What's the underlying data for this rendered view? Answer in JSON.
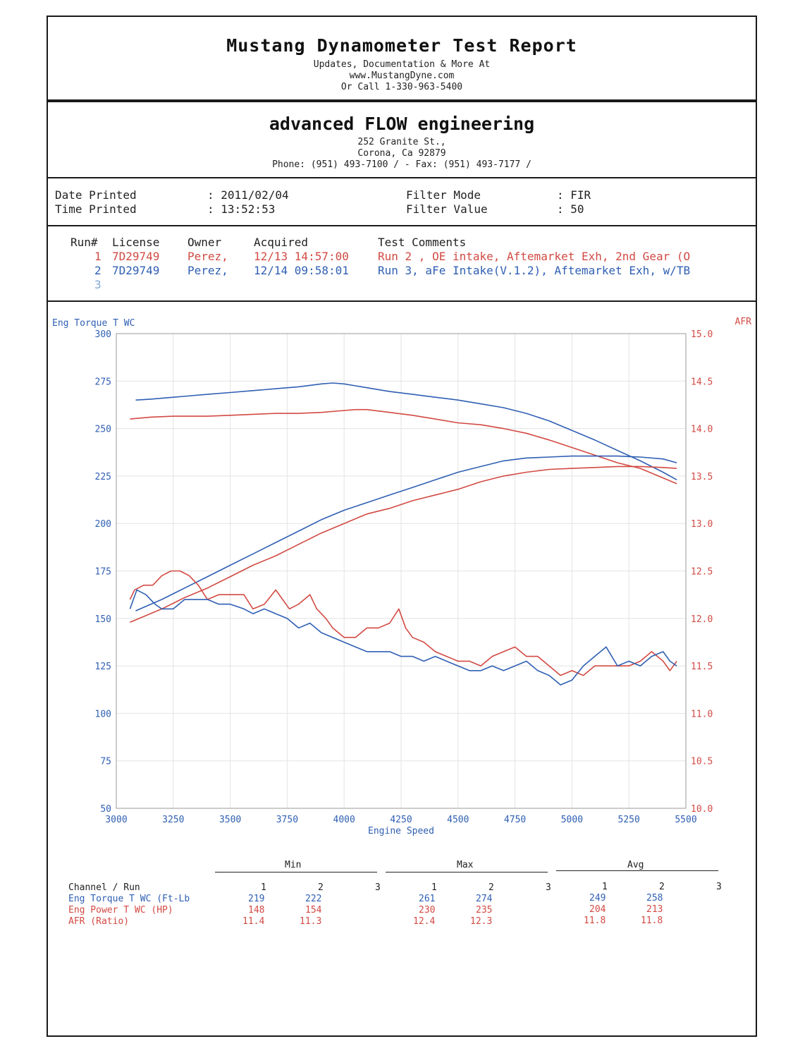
{
  "header": {
    "title": "Mustang Dynamometer Test Report",
    "line1": "Updates, Documentation & More At",
    "line2": "www.MustangDyne.com",
    "line3": "Or Call 1-330-963-5400"
  },
  "company": {
    "name": "advanced FLOW engineering",
    "street": "252 Granite St.,",
    "city": "Corona, Ca  92879",
    "phone": "Phone: (951) 493-7100 /  - Fax: (951) 493-7177 /"
  },
  "info": {
    "date_label": "Date Printed",
    "date_value": ": 2011/02/04",
    "time_label": "Time Printed",
    "time_value": ": 13:52:53",
    "filter_mode_label": "Filter Mode",
    "filter_mode_value": ": FIR",
    "filter_value_label": "Filter Value",
    "filter_value_value": ": 50"
  },
  "runs": {
    "headers": [
      "Run#",
      "License",
      "Owner",
      "Acquired",
      "Test Comments"
    ],
    "rows": [
      {
        "run": "1",
        "license": "7D29749",
        "owner": "Perez,",
        "acquired": "12/13 14:57:00",
        "comment": "Run 2 , OE intake, Aftemarket Exh, 2nd Gear (O"
      },
      {
        "run": "2",
        "license": "7D29749",
        "owner": "Perez,",
        "acquired": "12/14 09:58:01",
        "comment": "Run 3, aFe Intake(V.1.2), Aftemarket Exh, w/TB"
      },
      {
        "run": "3"
      }
    ]
  },
  "chart_data": {
    "type": "line",
    "left_axis_label": "Eng Torque T WC",
    "right_axis_label": "AFR",
    "xlabel": "Engine Speed",
    "xlim": [
      3000,
      5500
    ],
    "ylim_left": [
      50,
      300
    ],
    "ylim_right": [
      10.0,
      15.0
    ],
    "x_ticks": [
      "3000",
      "3250",
      "3500",
      "3750",
      "4000",
      "4250",
      "4500",
      "4750",
      "5000",
      "5250",
      "5500"
    ],
    "y_left_ticks": [
      "50",
      "75",
      "100",
      "125",
      "150",
      "175",
      "200",
      "225",
      "250",
      "275",
      "300"
    ],
    "y_right_ticks": [
      "10.0",
      "10.5",
      "11.0",
      "11.5",
      "12.0",
      "12.5",
      "13.0",
      "13.5",
      "14.0",
      "14.5",
      "15.0"
    ],
    "colors": {
      "run1": "#d24a43",
      "run2": "#2f5fb3"
    },
    "series": [
      {
        "name": "Run 1 Torque (Ft-Lb)",
        "run": 1,
        "axis": "left",
        "x": [
          3060,
          3150,
          3250,
          3400,
          3500,
          3600,
          3700,
          3800,
          3900,
          4000,
          4050,
          4100,
          4200,
          4300,
          4400,
          4500,
          4600,
          4700,
          4800,
          4900,
          5000,
          5100,
          5200,
          5300,
          5400,
          5460
        ],
        "y": [
          255,
          256,
          256.5,
          256.5,
          257,
          257.5,
          258,
          258,
          258.5,
          259.5,
          260,
          260,
          258.5,
          257,
          255,
          253,
          252,
          250,
          247.5,
          244,
          240,
          236,
          232,
          229,
          224,
          221
        ]
      },
      {
        "name": "Run 2 Torque (Ft-Lb)",
        "run": 2,
        "axis": "left",
        "x": [
          3085,
          3150,
          3250,
          3400,
          3500,
          3600,
          3700,
          3800,
          3900,
          3950,
          4000,
          4050,
          4100,
          4200,
          4300,
          4400,
          4500,
          4600,
          4700,
          4800,
          4900,
          5000,
          5100,
          5200,
          5300,
          5400,
          5460
        ],
        "y": [
          265,
          265.5,
          266.5,
          268,
          269,
          270,
          271,
          272,
          273.5,
          274,
          273.5,
          272.5,
          271.5,
          269.5,
          268,
          266.5,
          265,
          263,
          261,
          258,
          254,
          249,
          244,
          238.5,
          233,
          227,
          223
        ]
      },
      {
        "name": "Run 1 Power (HP)",
        "run": 1,
        "axis": "left",
        "x": [
          3060,
          3200,
          3300,
          3400,
          3500,
          3600,
          3700,
          3800,
          3900,
          4000,
          4100,
          4200,
          4300,
          4400,
          4500,
          4600,
          4700,
          4800,
          4900,
          5000,
          5100,
          5200,
          5300,
          5400,
          5460
        ],
        "y": [
          148,
          155,
          161,
          166,
          172,
          178,
          183,
          189,
          195,
          200,
          205,
          208,
          212,
          215,
          218,
          222,
          225,
          227,
          228.5,
          229,
          229.5,
          230,
          230,
          229.5,
          229
        ]
      },
      {
        "name": "Run 2 Power (HP)",
        "run": 2,
        "axis": "left",
        "x": [
          3085,
          3200,
          3300,
          3400,
          3500,
          3600,
          3700,
          3800,
          3900,
          4000,
          4100,
          4200,
          4300,
          4400,
          4500,
          4600,
          4700,
          4800,
          4900,
          5000,
          5100,
          5200,
          5300,
          5400,
          5460
        ],
        "y": [
          154,
          160,
          166,
          172,
          178,
          184,
          190,
          196,
          202,
          207,
          211,
          215,
          219,
          223,
          227,
          230,
          233,
          234.5,
          235,
          235.5,
          235.5,
          235.5,
          235,
          234,
          232
        ]
      },
      {
        "name": "Run 1 AFR (Ratio)",
        "run": 1,
        "axis": "right",
        "x": [
          3060,
          3080,
          3120,
          3160,
          3200,
          3240,
          3280,
          3320,
          3360,
          3400,
          3450,
          3500,
          3560,
          3600,
          3650,
          3700,
          3730,
          3760,
          3800,
          3850,
          3880,
          3920,
          3950,
          4000,
          4050,
          4100,
          4150,
          4200,
          4240,
          4270,
          4300,
          4350,
          4400,
          4450,
          4500,
          4550,
          4600,
          4650,
          4700,
          4750,
          4800,
          4850,
          4900,
          4950,
          5000,
          5050,
          5100,
          5150,
          5200,
          5250,
          5300,
          5350,
          5400,
          5430,
          5460
        ],
        "y": [
          12.2,
          12.3,
          12.35,
          12.35,
          12.45,
          12.5,
          12.5,
          12.45,
          12.35,
          12.2,
          12.25,
          12.25,
          12.25,
          12.1,
          12.15,
          12.3,
          12.2,
          12.1,
          12.15,
          12.25,
          12.1,
          12.0,
          11.9,
          11.8,
          11.8,
          11.9,
          11.9,
          11.95,
          12.1,
          11.9,
          11.8,
          11.75,
          11.65,
          11.6,
          11.55,
          11.55,
          11.5,
          11.6,
          11.65,
          11.7,
          11.6,
          11.6,
          11.5,
          11.4,
          11.45,
          11.4,
          11.5,
          11.5,
          11.5,
          11.5,
          11.55,
          11.65,
          11.55,
          11.45,
          11.55
        ]
      },
      {
        "name": "Run 2 AFR (Ratio)",
        "run": 2,
        "axis": "right",
        "x": [
          3060,
          3090,
          3130,
          3170,
          3200,
          3250,
          3300,
          3350,
          3400,
          3450,
          3500,
          3560,
          3600,
          3650,
          3700,
          3750,
          3800,
          3850,
          3900,
          3950,
          4000,
          4050,
          4100,
          4150,
          4200,
          4250,
          4300,
          4350,
          4400,
          4450,
          4500,
          4550,
          4600,
          4650,
          4700,
          4750,
          4800,
          4850,
          4900,
          4950,
          5000,
          5050,
          5100,
          5150,
          5200,
          5250,
          5300,
          5350,
          5400,
          5430,
          5460
        ],
        "y": [
          12.1,
          12.3,
          12.25,
          12.15,
          12.1,
          12.1,
          12.2,
          12.2,
          12.2,
          12.15,
          12.15,
          12.1,
          12.05,
          12.1,
          12.05,
          12.0,
          11.9,
          11.95,
          11.85,
          11.8,
          11.75,
          11.7,
          11.65,
          11.65,
          11.65,
          11.6,
          11.6,
          11.55,
          11.6,
          11.55,
          11.5,
          11.45,
          11.45,
          11.5,
          11.45,
          11.5,
          11.55,
          11.45,
          11.4,
          11.3,
          11.35,
          11.5,
          11.6,
          11.7,
          11.5,
          11.55,
          11.5,
          11.6,
          11.65,
          11.55,
          11.5
        ]
      }
    ]
  },
  "stats": {
    "groups": [
      "Min",
      "Max",
      "Avg"
    ],
    "channel_header": "Channel / Run",
    "run_numbers": [
      "1",
      "2",
      "3"
    ],
    "rows": [
      {
        "channel": "Eng Torque T WC (Ft-Lb",
        "min": [
          "219",
          "222"
        ],
        "max": [
          "261",
          "274"
        ],
        "avg": [
          "249",
          "258"
        ]
      },
      {
        "channel": "Eng Power T WC (HP)",
        "min": [
          "148",
          "154"
        ],
        "max": [
          "230",
          "235"
        ],
        "avg": [
          "204",
          "213"
        ]
      },
      {
        "channel": "AFR (Ratio)",
        "min": [
          "11.4",
          "11.3"
        ],
        "max": [
          "12.4",
          "12.3"
        ],
        "avg": [
          "11.8",
          "11.8"
        ]
      }
    ]
  }
}
